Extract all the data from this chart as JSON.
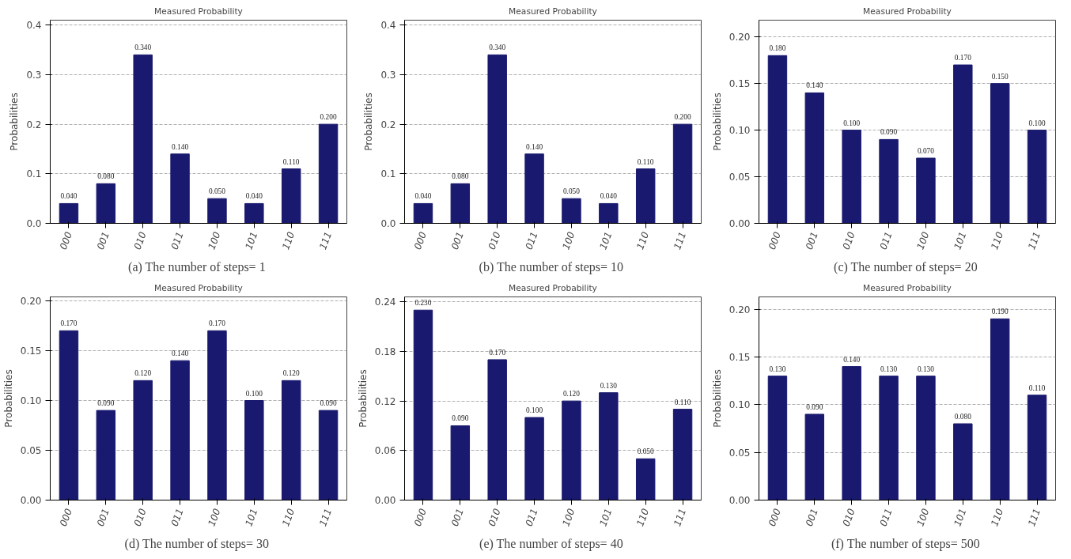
{
  "chart_data": [
    {
      "type": "bar",
      "title": "Measured Probability",
      "ylabel": "Probabilities",
      "categories": [
        "000",
        "001",
        "010",
        "011",
        "100",
        "101",
        "110",
        "111"
      ],
      "values": [
        0.04,
        0.08,
        0.34,
        0.14,
        0.05,
        0.04,
        0.11,
        0.2
      ],
      "color": "#191970",
      "value_labels": [
        "0.040",
        "0.080",
        "0.340",
        "0.140",
        "0.050",
        "0.040",
        "0.110",
        "0.200"
      ],
      "ylim": [
        0,
        0.41
      ],
      "yticks": [
        {
          "value": 0,
          "label": "0.0"
        },
        0.1,
        0.2,
        0.3,
        0.4
      ],
      "grid": "y",
      "annotations": [
        "(a)  The number of steps= 1"
      ]
    },
    {
      "type": "bar",
      "title": "Measured Probability",
      "ylabel": "Probabilities",
      "categories": [
        "000",
        "001",
        "010",
        "011",
        "100",
        "101",
        "110",
        "111"
      ],
      "values": [
        0.04,
        0.08,
        0.34,
        0.14,
        0.05,
        0.04,
        0.11,
        0.2
      ],
      "color": "#191970",
      "value_labels": [
        "0.040",
        "0.080",
        "0.340",
        "0.140",
        "0.050",
        "0.040",
        "0.110",
        "0.200"
      ],
      "ylim": [
        0,
        0.41
      ],
      "yticks": [
        {
          "value": 0,
          "label": "0.0"
        },
        0.1,
        0.2,
        0.3,
        0.4
      ],
      "grid": "y",
      "annotations": [
        "(b)  The number of steps= 10"
      ]
    },
    {
      "type": "bar",
      "title": "Measured Probability",
      "ylabel": "Probabilities",
      "categories": [
        "000",
        "001",
        "010",
        "011",
        "100",
        "101",
        "110",
        "111"
      ],
      "values": [
        0.18,
        0.14,
        0.1,
        0.09,
        0.07,
        0.17,
        0.15,
        0.1
      ],
      "color": "#191970",
      "value_labels": [
        "0.180",
        "0.140",
        "0.100",
        "0.090",
        "0.070",
        "0.170",
        "0.150",
        "0.100"
      ],
      "ylim": [
        0,
        0.218
      ],
      "yticks": [
        {
          "value": 0,
          "label": "0.00"
        },
        0.05,
        {
          "value": 0.1,
          "label": "0.10"
        },
        0.15,
        {
          "value": 0.2,
          "label": "0.20"
        }
      ],
      "grid": "y",
      "annotations": [
        "(c)  The number of steps= 20"
      ]
    },
    {
      "type": "bar",
      "title": "Measured Probability",
      "ylabel": "Probabilities",
      "categories": [
        "000",
        "001",
        "010",
        "011",
        "100",
        "101",
        "110",
        "111"
      ],
      "values": [
        0.17,
        0.09,
        0.12,
        0.14,
        0.17,
        0.1,
        0.12,
        0.09
      ],
      "color": "#191970",
      "value_labels": [
        "0.170",
        "0.090",
        "0.120",
        "0.140",
        "0.170",
        "0.100",
        "0.120",
        "0.090"
      ],
      "ylim": [
        0,
        0.204
      ],
      "yticks": [
        {
          "value": 0,
          "label": "0.00"
        },
        0.05,
        {
          "value": 0.1,
          "label": "0.10"
        },
        0.15,
        {
          "value": 0.2,
          "label": "0.20"
        }
      ],
      "grid": "y",
      "annotations": [
        "(d)  The number of steps= 30"
      ]
    },
    {
      "type": "bar",
      "title": "Measured Probability",
      "ylabel": "Probabilities",
      "categories": [
        "000",
        "001",
        "010",
        "011",
        "100",
        "101",
        "110",
        "111"
      ],
      "values": [
        0.23,
        0.09,
        0.17,
        0.1,
        0.12,
        0.13,
        0.05,
        0.11
      ],
      "color": "#191970",
      "value_labels": [
        "0.230",
        "0.090",
        "0.170",
        "0.100",
        "0.120",
        "0.130",
        "0.050",
        "0.110"
      ],
      "ylim": [
        0,
        0.246
      ],
      "yticks": [
        {
          "value": 0,
          "label": "0.00"
        },
        0.06,
        {
          "value": 0.12,
          "label": "0.12"
        },
        0.18,
        0.24
      ],
      "grid": "y",
      "annotations": [
        "(e)  The number of steps= 40"
      ]
    },
    {
      "type": "bar",
      "title": "Measured Probability",
      "ylabel": "Probabilities",
      "categories": [
        "000",
        "001",
        "010",
        "011",
        "100",
        "101",
        "110",
        "111"
      ],
      "values": [
        0.13,
        0.09,
        0.14,
        0.13,
        0.13,
        0.08,
        0.19,
        0.11
      ],
      "color": "#191970",
      "value_labels": [
        "0.130",
        "0.090",
        "0.140",
        "0.130",
        "0.130",
        "0.080",
        "0.190",
        "0.110"
      ],
      "ylim": [
        0,
        0.213
      ],
      "yticks": [
        {
          "value": 0,
          "label": "0.00"
        },
        0.05,
        {
          "value": 0.1,
          "label": "0.10"
        },
        0.15,
        {
          "value": 0.2,
          "label": "0.20"
        }
      ],
      "grid": "y",
      "annotations": [
        "(f)  The number of steps= 500"
      ]
    }
  ]
}
